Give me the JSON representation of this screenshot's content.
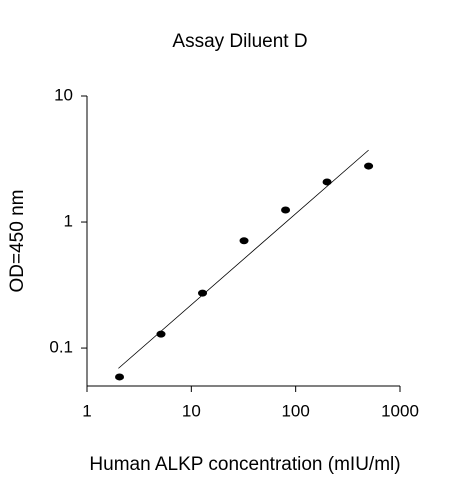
{
  "chart_data": {
    "type": "scatter",
    "title": "Assay Diluent D",
    "x_label": "Human ALKP concentration (mIU/ml)",
    "y_label": "OD=450 nm",
    "x": [
      2.05,
      5.12,
      12.8,
      32,
      80,
      200,
      500
    ],
    "values": [
      0.059,
      0.129,
      0.273,
      0.71,
      1.245,
      2.08,
      2.78
    ],
    "color": "#000000",
    "fit_line": {
      "x": [
        2,
        500
      ],
      "values": [
        0.069,
        3.72
      ]
    },
    "xlim": [
      1,
      1000
    ],
    "ylim": [
      0.05,
      10
    ],
    "xticks": [
      1,
      10,
      100,
      1000
    ],
    "yticks": [
      0.1,
      1,
      10
    ],
    "xscale": "log",
    "yscale": "log",
    "grid": false
  }
}
